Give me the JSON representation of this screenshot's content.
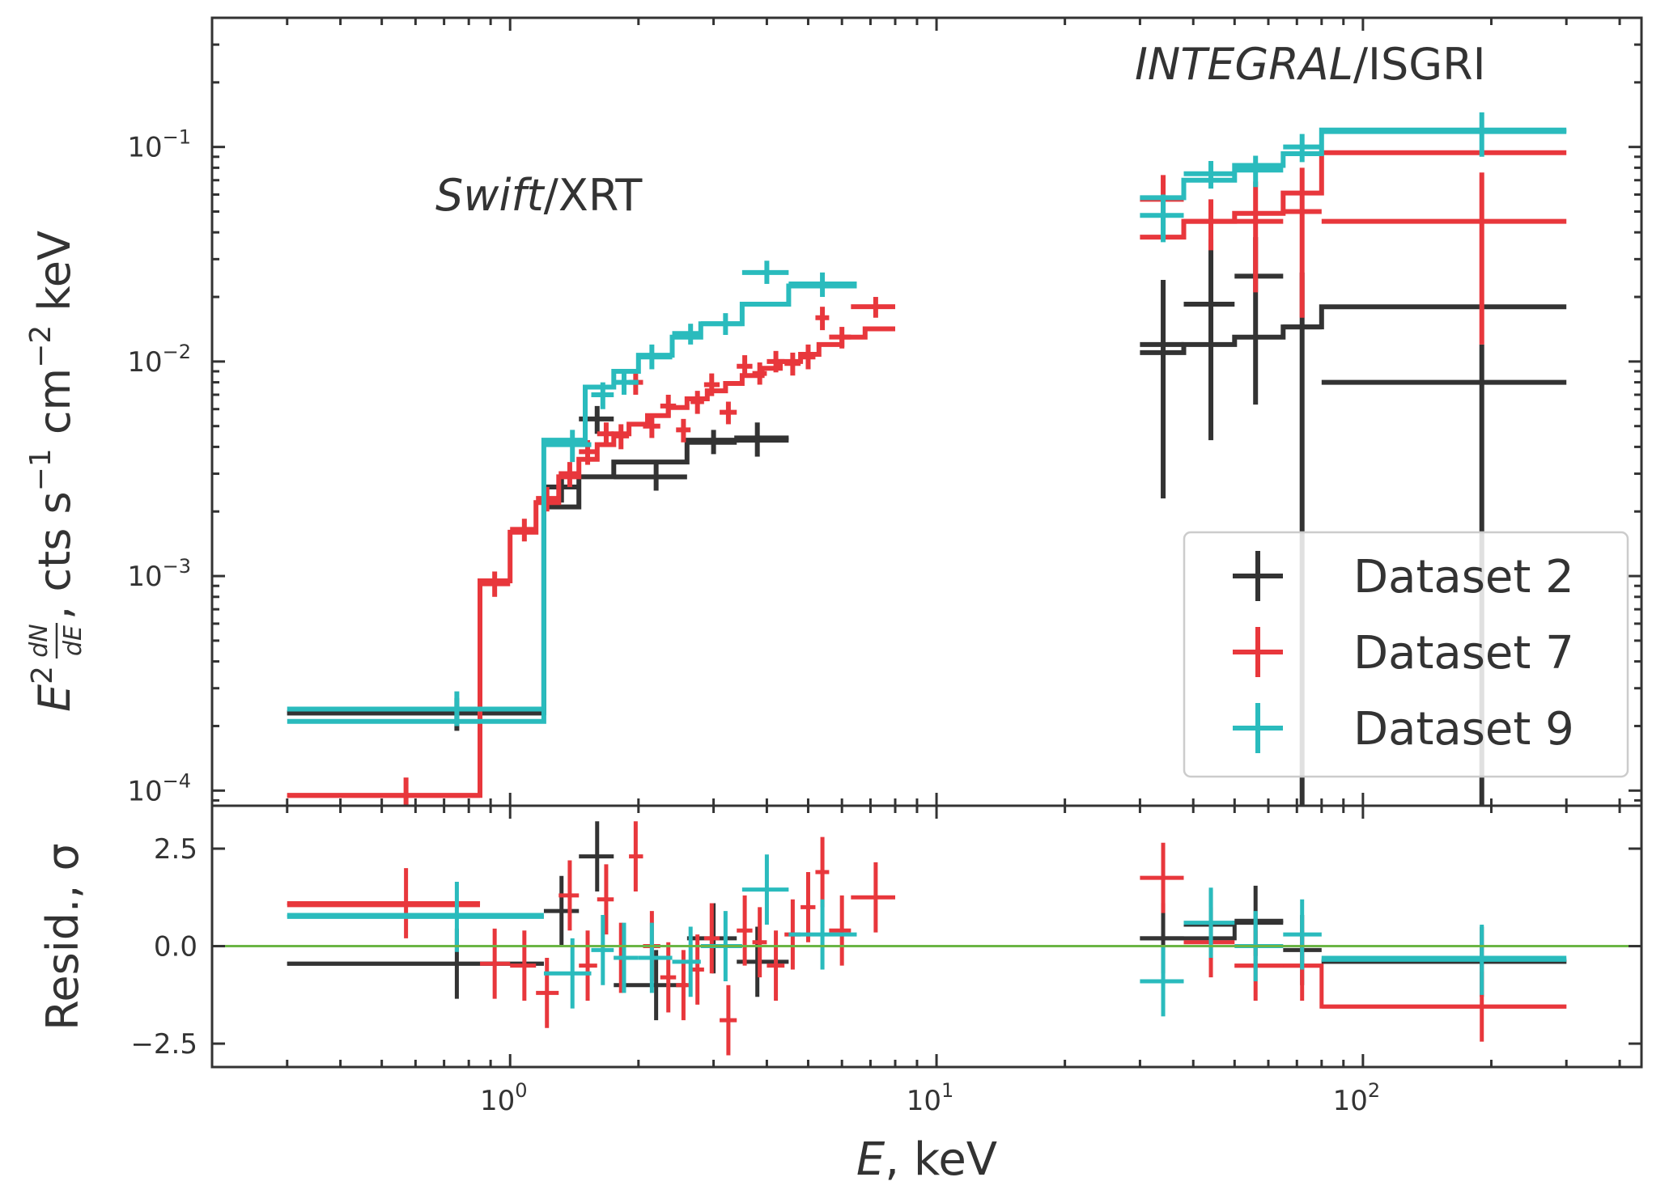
{
  "chart_data": {
    "type": "step-spectrum-with-residuals",
    "x_scale": "log",
    "xlim": [
      0.2,
      450
    ],
    "xlabel": {
      "var": "E",
      "unit": ", keV"
    },
    "x_ticks": [
      {
        "value": 1,
        "label": "10",
        "exp": "0"
      },
      {
        "value": 10,
        "label": "10",
        "exp": "1"
      },
      {
        "value": 100,
        "label": "10",
        "exp": "2"
      }
    ],
    "top_panel": {
      "ylabel": ", cts s",
      "ylabel_parts": {
        "e": "E",
        "two": "2",
        "dn": "dN",
        "de": "dE",
        "cts": ", cts s",
        "m1": "−1",
        "cm": " cm",
        "m2": "−2",
        "kev": " keV"
      },
      "y_scale": "log",
      "ylim": [
        8.5e-05,
        0.4
      ],
      "y_ticks": [
        {
          "value": 0.0001,
          "label": "10",
          "exp": "−4"
        },
        {
          "value": 0.001,
          "label": "10",
          "exp": "−3"
        },
        {
          "value": 0.01,
          "label": "10",
          "exp": "−2"
        },
        {
          "value": 0.1,
          "label": "10",
          "exp": "−1"
        }
      ]
    },
    "bottom_panel": {
      "ylabel": "Resid., σ",
      "ylim": [
        -3.1,
        3.6
      ],
      "y_ticks": [
        {
          "value": -2.5,
          "label": "−2.5"
        },
        {
          "value": 0.0,
          "label": "0.0"
        },
        {
          "value": 2.5,
          "label": "2.5"
        }
      ],
      "zero_line_color": "#6bb545"
    },
    "annotations": [
      {
        "italic": "Swift",
        "rest": "/XRT"
      },
      {
        "italic": "INTEGRAL",
        "rest": "/ISGRI"
      }
    ],
    "legend": {
      "location": "lower-right",
      "entries": [
        "Dataset 2",
        "Dataset 7",
        "Dataset 9"
      ]
    },
    "series": [
      {
        "name": "Dataset 2",
        "color": "#333333",
        "data": [
          [
            0.3,
            1.2,
            0.75,
            0.00023,
            0.00019,
            0.00027,
            -0.45
          ],
          [
            1.2,
            1.45,
            1.32,
            0.0026,
            0.0022,
            0.003,
            0.9
          ],
          [
            1.45,
            1.75,
            1.6,
            0.0054,
            0.0046,
            0.0062,
            2.3
          ],
          [
            1.75,
            2.6,
            2.2,
            0.0029,
            0.0025,
            0.0034,
            -1.0
          ],
          [
            2.6,
            3.4,
            3.0,
            0.0042,
            0.0037,
            0.0048,
            0.2
          ],
          [
            3.4,
            4.5,
            3.8,
            0.0043,
            0.0036,
            0.0052,
            -0.4
          ],
          [
            30,
            38,
            34,
            0.012,
            0.0023,
            0.024,
            0.2
          ],
          [
            38,
            50,
            44,
            0.0185,
            0.0043,
            0.037,
            0.55
          ],
          [
            50,
            65,
            56,
            0.025,
            0.0063,
            0.038,
            0.65
          ],
          [
            65,
            80,
            72,
            0.0145,
            8e-05,
            0.026,
            -0.1
          ],
          [
            80,
            300,
            190,
            0.008,
            8e-05,
            0.012,
            -0.4
          ]
        ],
        "model": [
          [
            0.3,
            1.2,
            0.00023
          ],
          [
            1.2,
            1.45,
            0.0021
          ],
          [
            1.45,
            1.75,
            0.0029
          ],
          [
            1.75,
            2.6,
            0.0034
          ],
          [
            2.6,
            3.4,
            0.0043
          ],
          [
            3.4,
            4.5,
            0.0044
          ],
          [
            30,
            38,
            0.011
          ],
          [
            38,
            50,
            0.012
          ],
          [
            50,
            65,
            0.013
          ],
          [
            65,
            80,
            0.0145
          ],
          [
            80,
            300,
            0.018
          ]
        ],
        "model_resid": [
          [
            0.3,
            1.2,
            -0.45
          ],
          [
            30,
            50,
            0.2
          ],
          [
            50,
            65,
            0.6
          ],
          [
            80,
            300,
            -0.4
          ]
        ]
      },
      {
        "name": "Dataset 7",
        "color": "#e8373c",
        "data": [
          [
            0.3,
            0.85,
            0.57,
            9.5e-05,
            8.5e-05,
            0.000115,
            1.1
          ],
          [
            0.85,
            1.0,
            0.92,
            0.00092,
            0.0008,
            0.00105,
            -0.45
          ],
          [
            1.0,
            1.15,
            1.08,
            0.00165,
            0.00145,
            0.00185,
            -0.5
          ],
          [
            1.15,
            1.3,
            1.22,
            0.0023,
            0.002,
            0.0026,
            -1.2
          ],
          [
            1.3,
            1.45,
            1.38,
            0.003,
            0.0026,
            0.0034,
            1.3
          ],
          [
            1.45,
            1.6,
            1.52,
            0.0038,
            0.0033,
            0.0043,
            -0.5
          ],
          [
            1.6,
            1.75,
            1.68,
            0.0046,
            0.004,
            0.0052,
            1.2
          ],
          [
            1.75,
            1.9,
            1.82,
            0.0045,
            0.0039,
            0.0051,
            -0.3
          ],
          [
            1.9,
            2.05,
            1.97,
            0.008,
            0.007,
            0.009,
            2.3
          ],
          [
            2.05,
            2.25,
            2.15,
            0.005,
            0.0044,
            0.0056,
            0.0
          ],
          [
            2.25,
            2.45,
            2.35,
            0.0062,
            0.0055,
            0.007,
            -0.8
          ],
          [
            2.45,
            2.65,
            2.55,
            0.0048,
            0.0042,
            0.0054,
            -1.0
          ],
          [
            2.65,
            2.85,
            2.75,
            0.0065,
            0.0057,
            0.0073,
            -0.6
          ],
          [
            2.85,
            3.1,
            2.97,
            0.0078,
            0.0069,
            0.0088,
            0.2
          ],
          [
            3.1,
            3.4,
            3.25,
            0.0058,
            0.0051,
            0.0065,
            -1.9
          ],
          [
            3.4,
            3.7,
            3.55,
            0.0095,
            0.0084,
            0.0107,
            0.4
          ],
          [
            3.7,
            4.0,
            3.85,
            0.0088,
            0.0078,
            0.0099,
            0.1
          ],
          [
            4.0,
            4.4,
            4.2,
            0.01,
            0.0089,
            0.0112,
            -0.5
          ],
          [
            4.4,
            4.8,
            4.6,
            0.0098,
            0.0086,
            0.011,
            0.3
          ],
          [
            4.8,
            5.2,
            5.0,
            0.0105,
            0.0092,
            0.012,
            1.0
          ],
          [
            5.2,
            5.6,
            5.4,
            0.016,
            0.014,
            0.018,
            1.9
          ],
          [
            5.6,
            6.3,
            6.0,
            0.013,
            0.0115,
            0.0145,
            0.4
          ],
          [
            6.3,
            8.0,
            7.2,
            0.018,
            0.016,
            0.02,
            1.25
          ],
          [
            30,
            38,
            34,
            0.057,
            0.041,
            0.074,
            1.75
          ],
          [
            38,
            50,
            44,
            0.045,
            0.033,
            0.057,
            0.1
          ],
          [
            50,
            65,
            56,
            0.045,
            0.021,
            0.069,
            -0.5
          ],
          [
            65,
            80,
            72,
            0.05,
            0.016,
            0.08,
            -0.5
          ],
          [
            80,
            300,
            190,
            0.045,
            0.012,
            0.076,
            -1.55
          ]
        ],
        "model": [
          [
            0.3,
            0.85,
            9.5e-05
          ],
          [
            0.85,
            1.0,
            0.00095
          ],
          [
            1.0,
            1.15,
            0.0016
          ],
          [
            1.15,
            1.3,
            0.0022
          ],
          [
            1.3,
            1.45,
            0.0029
          ],
          [
            1.45,
            1.6,
            0.0035
          ],
          [
            1.6,
            1.75,
            0.0041
          ],
          [
            1.75,
            1.9,
            0.0046
          ],
          [
            1.9,
            2.1,
            0.0051
          ],
          [
            2.1,
            2.35,
            0.0056
          ],
          [
            2.35,
            2.6,
            0.0061
          ],
          [
            2.6,
            2.9,
            0.0067
          ],
          [
            2.9,
            3.2,
            0.0073
          ],
          [
            3.2,
            3.5,
            0.0079
          ],
          [
            3.5,
            3.9,
            0.0086
          ],
          [
            3.9,
            4.3,
            0.0093
          ],
          [
            4.3,
            4.8,
            0.01
          ],
          [
            4.8,
            5.3,
            0.0108
          ],
          [
            5.3,
            6.0,
            0.012
          ],
          [
            6.0,
            6.8,
            0.013
          ],
          [
            6.8,
            8.0,
            0.0142
          ],
          [
            30,
            38,
            0.038
          ],
          [
            38,
            50,
            0.045
          ],
          [
            50,
            65,
            0.049
          ],
          [
            65,
            80,
            0.061
          ],
          [
            80,
            300,
            0.094
          ]
        ],
        "model_resid": [
          [
            0.3,
            0.85,
            1.05
          ],
          [
            50,
            80,
            -0.5
          ],
          [
            80,
            300,
            -1.55
          ]
        ]
      },
      {
        "name": "Dataset 9",
        "color": "#2abbbd",
        "data": [
          [
            0.3,
            1.2,
            0.75,
            0.00024,
            0.0002,
            0.00029,
            0.75
          ],
          [
            1.2,
            1.55,
            1.4,
            0.0041,
            0.0034,
            0.0048,
            -0.7
          ],
          [
            1.55,
            1.75,
            1.65,
            0.007,
            0.006,
            0.008,
            -0.1
          ],
          [
            1.75,
            2.0,
            1.85,
            0.008,
            0.007,
            0.009,
            -0.3
          ],
          [
            2.0,
            2.4,
            2.15,
            0.0105,
            0.0092,
            0.012,
            -0.3
          ],
          [
            2.4,
            2.8,
            2.65,
            0.0135,
            0.012,
            0.015,
            -0.4
          ],
          [
            2.8,
            3.5,
            3.2,
            0.015,
            0.0133,
            0.0168,
            0.0
          ],
          [
            3.5,
            4.5,
            4.0,
            0.026,
            0.023,
            0.0295,
            1.45
          ],
          [
            4.5,
            6.5,
            5.4,
            0.023,
            0.02,
            0.026,
            0.3
          ],
          [
            30,
            38,
            34,
            0.048,
            0.036,
            0.06,
            -0.9
          ],
          [
            38,
            50,
            44,
            0.075,
            0.064,
            0.086,
            0.6
          ],
          [
            50,
            65,
            56,
            0.078,
            0.065,
            0.091,
            0.0
          ],
          [
            65,
            80,
            72,
            0.1,
            0.085,
            0.115,
            0.3
          ],
          [
            80,
            300,
            190,
            0.118,
            0.09,
            0.145,
            -0.35
          ]
        ],
        "model": [
          [
            0.3,
            1.2,
            0.00021
          ],
          [
            1.2,
            1.5,
            0.0043
          ],
          [
            1.5,
            1.75,
            0.0076
          ],
          [
            1.75,
            2.0,
            0.009
          ],
          [
            2.0,
            2.4,
            0.0107
          ],
          [
            2.4,
            2.8,
            0.013
          ],
          [
            2.8,
            3.5,
            0.015
          ],
          [
            3.5,
            4.5,
            0.0185
          ],
          [
            4.5,
            6.5,
            0.0225
          ],
          [
            30,
            38,
            0.058
          ],
          [
            38,
            50,
            0.07
          ],
          [
            50,
            65,
            0.082
          ],
          [
            65,
            80,
            0.093
          ],
          [
            80,
            300,
            0.12
          ]
        ],
        "model_resid": [
          [
            0.3,
            1.2,
            0.8
          ],
          [
            80,
            300,
            -0.3
          ]
        ]
      }
    ]
  }
}
